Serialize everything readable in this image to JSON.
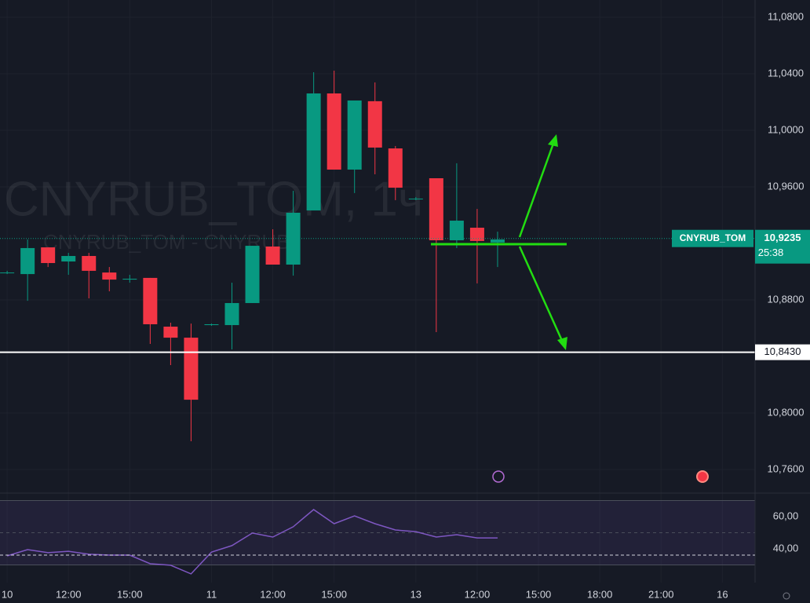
{
  "chart_data": [
    {
      "type": "candlestick",
      "watermark": "CNYRUB_TOM, 1ч",
      "watermark_subtitle": "CNYRUB_TOM - CNYRUB",
      "symbol_label": "CNYRUB_TOM",
      "last_price": {
        "value": 10.9235,
        "label": "10,9235"
      },
      "countdown": "25:38",
      "levels": [
        {
          "value": 10.843,
          "label": "10,8430"
        }
      ],
      "up_color": "#089981",
      "down_color": "#f23645",
      "open": [
        10.8994,
        10.8983,
        10.9172,
        10.9072,
        10.9111,
        10.8994,
        10.8944,
        10.8956,
        10.8611,
        10.8533,
        10.8622,
        10.8622,
        10.8778,
        10.9178,
        10.905,
        10.9433,
        11.0261,
        10.9722,
        11.0206,
        10.9872,
        10.9517,
        10.9661,
        10.9222,
        10.9311,
        10.9206
      ],
      "high": [
        10.9006,
        10.9228,
        10.9172,
        10.9133,
        10.9133,
        10.9033,
        10.8978,
        10.8956,
        10.8639,
        10.8633,
        10.8633,
        10.8922,
        10.9183,
        10.93,
        10.9572,
        11.0411,
        11.0422,
        11.0211,
        11.0339,
        10.9889,
        10.9528,
        10.9661,
        10.9767,
        10.9444,
        10.9283
      ],
      "low": [
        10.8983,
        10.8794,
        10.9033,
        10.8978,
        10.8811,
        10.8861,
        10.8922,
        10.8489,
        10.8339,
        10.78,
        10.8617,
        10.845,
        10.8778,
        10.905,
        10.8972,
        10.9433,
        10.9722,
        10.9556,
        10.9689,
        10.9506,
        10.9506,
        10.8572,
        10.9167,
        10.8917,
        10.9033
      ],
      "close": [
        10.8994,
        10.9167,
        10.9061,
        10.9111,
        10.9006,
        10.8944,
        10.895,
        10.8628,
        10.8533,
        10.8094,
        10.8628,
        10.8778,
        10.9183,
        10.905,
        10.9417,
        11.0261,
        10.9722,
        11.0211,
        10.9878,
        10.9594,
        10.9517,
        10.9222,
        10.9361,
        10.9217,
        10.9228
      ],
      "xlim": [
        -0.35,
        36.6
      ],
      "xticks": [
        {
          "value": 0,
          "label": "10"
        },
        {
          "value": 3,
          "label": "12:00"
        },
        {
          "value": 6,
          "label": "15:00"
        },
        {
          "value": 10,
          "label": "11"
        },
        {
          "value": 13,
          "label": "12:00"
        },
        {
          "value": 16,
          "label": "15:00"
        },
        {
          "value": 20,
          "label": "13"
        },
        {
          "value": 23,
          "label": "12:00"
        },
        {
          "value": 26,
          "label": "15:00"
        },
        {
          "value": 29,
          "label": "18:00"
        },
        {
          "value": 32,
          "label": "21:00"
        },
        {
          "value": 35,
          "label": "16"
        }
      ],
      "ylim": [
        10.7478,
        11.0922
      ],
      "yticks": [
        {
          "value": 11.08,
          "label": "11,0800"
        },
        {
          "value": 11.04,
          "label": "11,0400"
        },
        {
          "value": 11.0,
          "label": "11,0000"
        },
        {
          "value": 10.96,
          "label": "10,9600"
        },
        {
          "value": 10.88,
          "label": "10,8800"
        },
        {
          "value": 10.8,
          "label": "10,8000"
        },
        {
          "value": 10.76,
          "label": "10,7600"
        }
      ]
    },
    {
      "type": "line",
      "color": "#7e57c2",
      "values": [
        35.6,
        39.5,
        37.6,
        38.5,
        36.6,
        36.1,
        36.1,
        30.7,
        29.8,
        24.4,
        38.0,
        42.0,
        49.8,
        47.3,
        53.7,
        64.4,
        55.6,
        60.5,
        55.6,
        51.7,
        50.7,
        47.3,
        48.8,
        46.8,
        46.8
      ],
      "bands": [
        70,
        30
      ],
      "midline": 50,
      "ylim": [
        19.0,
        72.7
      ],
      "yticks": [
        {
          "value": 60,
          "label": "60,00"
        },
        {
          "value": 40,
          "label": "40,00"
        }
      ]
    }
  ]
}
